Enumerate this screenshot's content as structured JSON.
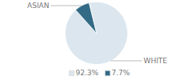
{
  "chart_data": {
    "type": "pie",
    "categories": [
      "WHITE",
      "ASIAN"
    ],
    "values": [
      92.3,
      7.7
    ],
    "value_labels": [
      "92.3%",
      "7.7%"
    ],
    "colors": [
      "#dce6ee",
      "#336b87"
    ],
    "legend": "bottom"
  }
}
